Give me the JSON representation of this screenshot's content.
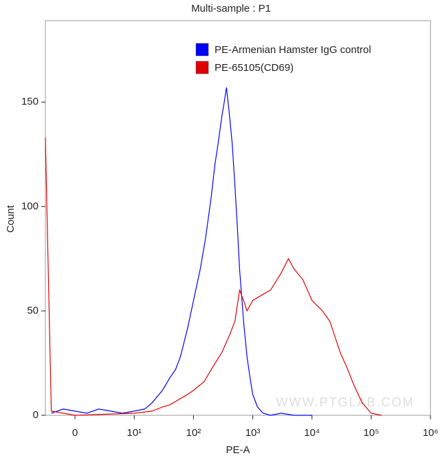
{
  "chart_data": {
    "type": "line",
    "title": "Multi-sample : P1",
    "x_label": "PE-A",
    "y_label": "Count",
    "annotation": "WWW.PTGLAB.COM",
    "xscale": "biexponential",
    "xlim": [
      -5,
      1000000
    ],
    "xticks": [
      0,
      {
        "value": 10,
        "label": "10¹"
      },
      {
        "value": 100,
        "label": "10²"
      },
      {
        "value": 1000,
        "label": "10³"
      },
      {
        "value": 10000,
        "label": "10⁴"
      },
      {
        "value": 100000,
        "label": "10⁵"
      },
      {
        "value": 1000000,
        "label": "10⁶"
      }
    ],
    "ylim": [
      0,
      189
    ],
    "yticks": [
      0,
      50,
      100,
      150
    ],
    "legend": "top-right",
    "series": [
      {
        "name": "PE-Armenian Hamster IgG control",
        "color": "#0000ff",
        "x": [
          -4,
          -2,
          0,
          2,
          4,
          6,
          8,
          10,
          15,
          20,
          30,
          40,
          50,
          60,
          80,
          100,
          130,
          160,
          200,
          230,
          260,
          300,
          330,
          360,
          400,
          450,
          500,
          550,
          600,
          700,
          800,
          900,
          1000,
          1200,
          1500,
          2000,
          3000,
          5000,
          10000
        ],
        "values": [
          1,
          3,
          2,
          1,
          3,
          2,
          1,
          2,
          3,
          6,
          12,
          18,
          22,
          28,
          42,
          55,
          70,
          85,
          105,
          120,
          130,
          143,
          150,
          157,
          145,
          130,
          110,
          90,
          70,
          45,
          28,
          18,
          10,
          4,
          1,
          0,
          1,
          0,
          0
        ]
      },
      {
        "name": "PE-65105(CD69)",
        "color": "#e00000",
        "x": [
          -5,
          -4,
          0,
          10,
          20,
          30,
          40,
          60,
          80,
          100,
          150,
          200,
          300,
          400,
          500,
          600,
          700,
          800,
          1000,
          1500,
          2000,
          3000,
          4000,
          5000,
          7000,
          10000,
          15000,
          20000,
          30000,
          40000,
          50000,
          70000,
          100000,
          150000
        ],
        "values": [
          133,
          2,
          0,
          1,
          2,
          4,
          5,
          8,
          10,
          12,
          16,
          22,
          30,
          38,
          45,
          60,
          55,
          50,
          55,
          58,
          60,
          68,
          75,
          70,
          65,
          55,
          50,
          45,
          30,
          22,
          15,
          6,
          1,
          0
        ]
      }
    ]
  }
}
